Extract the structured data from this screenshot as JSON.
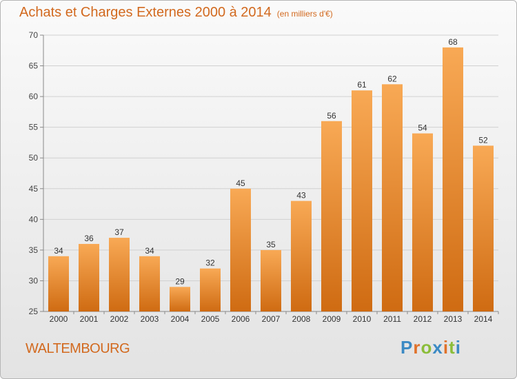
{
  "header": {
    "title": "Achats et Charges Externes 2000 à 2014",
    "unit": "(en milliers d'€)"
  },
  "footer": {
    "place": "WALTEMBOURG",
    "brand": "Proxiti"
  },
  "colors": {
    "bar_top": "#f8a955",
    "bar_bottom": "#cf6b12",
    "title": "#d2691e"
  },
  "chart_data": {
    "type": "bar",
    "title": "Achats et Charges Externes 2000 à 2014",
    "subtitle": "(en milliers d'€)",
    "categories": [
      "2000",
      "2001",
      "2002",
      "2003",
      "2004",
      "2005",
      "2006",
      "2007",
      "2008",
      "2009",
      "2010",
      "2011",
      "2012",
      "2013",
      "2014"
    ],
    "values": [
      34,
      36,
      37,
      34,
      29,
      32,
      45,
      35,
      43,
      56,
      61,
      62,
      54,
      68,
      52
    ],
    "ylim": [
      25,
      70
    ],
    "yticks": [
      25,
      30,
      35,
      40,
      45,
      50,
      55,
      60,
      65,
      70
    ],
    "grid": true,
    "data_labels": true
  }
}
